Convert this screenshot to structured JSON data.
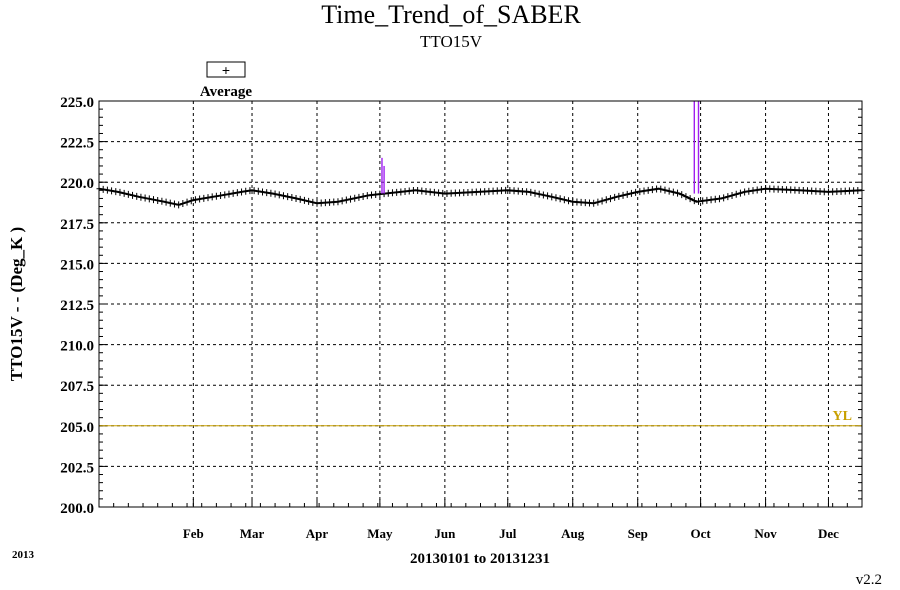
{
  "chart_data": {
    "type": "line",
    "title": "Time_Trend_of_SABER",
    "subtitle": "TTO15V",
    "xlabel": "20130101 to 20131231",
    "ylabel": "TTO15V  - - (Deg_K )",
    "year_label": "2013",
    "version_label": "v2.2",
    "legend": {
      "symbol": "+",
      "label": "Average",
      "placement": "top-left"
    },
    "x_range": [
      "2013-01-01",
      "2013-12-31"
    ],
    "ylim": [
      200.0,
      225.0
    ],
    "y_ticks": [
      "200.0",
      "202.5",
      "205.0",
      "207.5",
      "210.0",
      "212.5",
      "215.0",
      "217.5",
      "220.0",
      "222.5",
      "225.0"
    ],
    "x_ticks": [
      {
        "label": "Feb",
        "date": "2013-02-15"
      },
      {
        "label": "Mar",
        "date": "2013-03-15"
      },
      {
        "label": "Apr",
        "date": "2013-04-15"
      },
      {
        "label": "May",
        "date": "2013-05-15"
      },
      {
        "label": "Jun",
        "date": "2013-06-15"
      },
      {
        "label": "Jul",
        "date": "2013-07-15"
      },
      {
        "label": "Aug",
        "date": "2013-08-15"
      },
      {
        "label": "Sep",
        "date": "2013-09-15"
      },
      {
        "label": "Oct",
        "date": "2013-10-15"
      },
      {
        "label": "Nov",
        "date": "2013-11-15"
      },
      {
        "label": "Dec",
        "date": "2013-12-15"
      }
    ],
    "grid": true,
    "series": [
      {
        "name": "Average",
        "color": "#000000",
        "marker": "+",
        "x": [
          "2013-01-01",
          "2013-01-10",
          "2013-01-20",
          "2013-02-01",
          "2013-02-08",
          "2013-02-15",
          "2013-03-01",
          "2013-03-10",
          "2013-03-15",
          "2013-03-25",
          "2013-04-05",
          "2013-04-15",
          "2013-04-25",
          "2013-05-10",
          "2013-05-25",
          "2013-06-01",
          "2013-06-15",
          "2013-07-01",
          "2013-07-15",
          "2013-07-25",
          "2013-08-05",
          "2013-08-15",
          "2013-08-25",
          "2013-09-05",
          "2013-09-15",
          "2013-09-25",
          "2013-10-05",
          "2013-10-13",
          "2013-10-25",
          "2013-11-05",
          "2013-11-15",
          "2013-12-01",
          "2013-12-15",
          "2013-12-31"
        ],
        "y": [
          219.6,
          219.4,
          219.1,
          218.8,
          218.6,
          218.9,
          219.2,
          219.4,
          219.5,
          219.3,
          219.0,
          218.7,
          218.8,
          219.2,
          219.4,
          219.5,
          219.3,
          219.4,
          219.5,
          219.4,
          219.1,
          218.8,
          218.7,
          219.1,
          219.4,
          219.6,
          219.3,
          218.8,
          219.0,
          219.4,
          219.6,
          219.5,
          219.4,
          219.5
        ]
      },
      {
        "name": "",
        "color": "#a020f0",
        "style": "spikes",
        "x": [
          "2013-05-16",
          "2013-05-17",
          "2013-10-12",
          "2013-10-14"
        ],
        "y": [
          221.5,
          221.0,
          225.0,
          225.0
        ]
      },
      {
        "name": "YL",
        "color": "#c8a000",
        "style": "horizontal",
        "y": 205.0
      }
    ]
  }
}
